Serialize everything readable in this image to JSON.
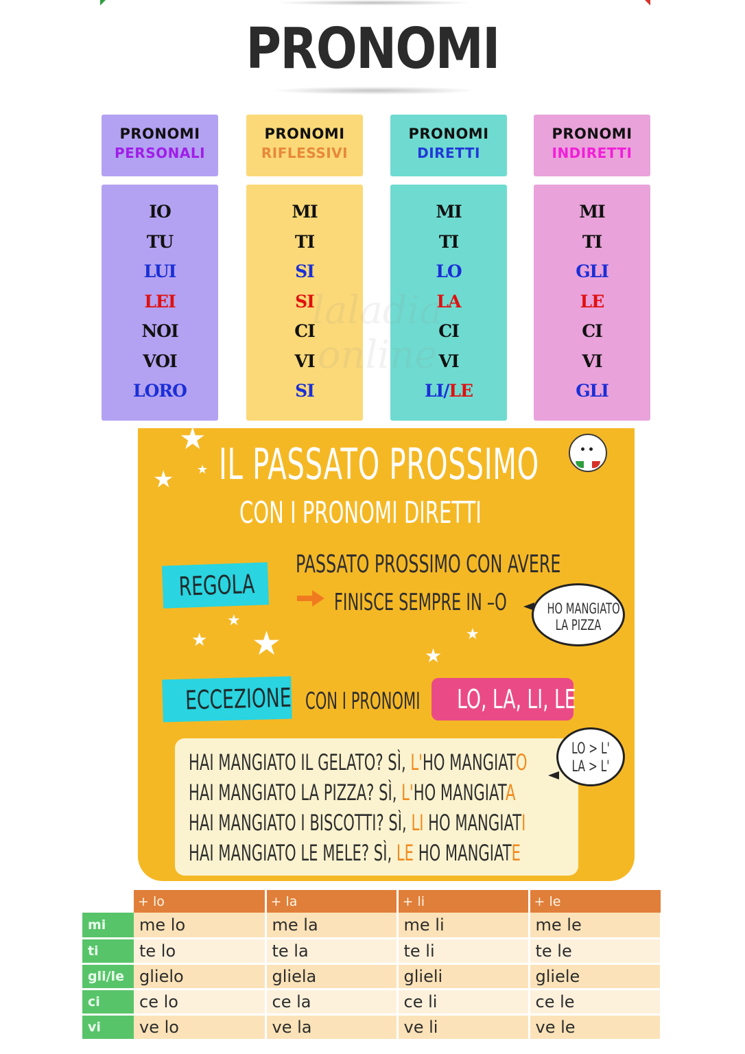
{
  "title": "PRONOMI",
  "colors": {
    "personali": "#b3a2f2",
    "riflessivi": "#fbd978",
    "diretti": "#6fdbd0",
    "indiretti": "#e9a2da",
    "blue": "#1a2fd6",
    "red": "#e01010",
    "poster": "#f5b825",
    "accent_cyan": "#2ad4e0",
    "accent_pink": "#ea4b86",
    "table_header": "#e07f3a",
    "table_rowlabel": "#58c46a"
  },
  "columns": [
    {
      "head1": "PRONOMI",
      "head2": "PERSONALI",
      "head2_color": "#a01ee8",
      "items": [
        {
          "t": "IO",
          "c": "black"
        },
        {
          "t": "TU",
          "c": "black"
        },
        {
          "t": "LUI",
          "c": "blue"
        },
        {
          "t": "LEI",
          "c": "red"
        },
        {
          "t": "NOI",
          "c": "black"
        },
        {
          "t": "VOI",
          "c": "black"
        },
        {
          "t": "LORO",
          "c": "blue"
        }
      ]
    },
    {
      "head1": "PRONOMI",
      "head2": "RIFLESSIVI",
      "head2_color": "#e7893a",
      "items": [
        {
          "t": "MI",
          "c": "black"
        },
        {
          "t": "TI",
          "c": "black"
        },
        {
          "t": "SI",
          "c": "blue"
        },
        {
          "t": "SI",
          "c": "red"
        },
        {
          "t": "CI",
          "c": "black"
        },
        {
          "t": "VI",
          "c": "black"
        },
        {
          "t": "SI",
          "c": "blue"
        }
      ]
    },
    {
      "head1": "PRONOMI",
      "head2": "DIRETTI",
      "head2_color": "#2238d8",
      "items": [
        {
          "t": "MI",
          "c": "black"
        },
        {
          "t": "TI",
          "c": "black"
        },
        {
          "t": "LO",
          "c": "blue"
        },
        {
          "t": "LA",
          "c": "red"
        },
        {
          "t": "CI",
          "c": "black"
        },
        {
          "t": "VI",
          "c": "black"
        }
      ],
      "last_a": "LI/",
      "last_b": "LE"
    },
    {
      "head1": "PRONOMI",
      "head2": "INDIRETTI",
      "head2_color": "#f21ed9",
      "items": [
        {
          "t": "MI",
          "c": "black"
        },
        {
          "t": "TI",
          "c": "black"
        },
        {
          "t": "GLI",
          "c": "blue"
        },
        {
          "t": "LE",
          "c": "red"
        },
        {
          "t": "CI",
          "c": "black"
        },
        {
          "t": "VI",
          "c": "black"
        },
        {
          "t": "GLI",
          "c": "blue"
        }
      ]
    }
  ],
  "watermark": "laladia online",
  "poster": {
    "title": "IL PASSATO PROSSIMO",
    "subtitle": "CON I PRONOMI DIRETTI",
    "regola_label": "REGOLA",
    "rule_line1": "PASSATO PROSSIMO CON AVERE",
    "rule_line2": "FINISCE SEMPRE IN –O",
    "bubble1_line1": "HO MANGIATO",
    "bubble1_line2": "LA PIZZA",
    "eccezione_label": "ECCEZIONE",
    "eccezione_text": "CON I PRONOMI",
    "eccezione_pronouns": "LO, LA, LI, LE",
    "bubble2_line1": "LO > L'",
    "bubble2_line2": "LA > L'",
    "examples": [
      {
        "q": "HAI MANGIATO IL GELATO? SÌ, ",
        "p": "L'",
        "m": "HO MANGIAT",
        "e": "O"
      },
      {
        "q": "HAI MANGIATO LA PIZZA?  SÌ, ",
        "p": "L'",
        "m": "HO MANGIAT",
        "e": "A"
      },
      {
        "q": "HAI MANGIATO I BISCOTTI? SÌ, ",
        "p": "LI",
        "m": " HO MANGIAT",
        "e": "I"
      },
      {
        "q": "HAI MANGIATO LE MELE?  SÌ, ",
        "p": "LE",
        "m": " HO MANGIAT",
        "e": "E"
      }
    ]
  },
  "combo_table": {
    "headers": [
      "+ lo",
      "+ la",
      "+ li",
      "+ le"
    ],
    "rows": [
      {
        "label": "mi",
        "cells": [
          "me lo",
          "me la",
          "me li",
          "me le"
        ]
      },
      {
        "label": "ti",
        "cells": [
          "te lo",
          "te la",
          "te li",
          "te le"
        ]
      },
      {
        "label": "gli/le",
        "cells": [
          "glielo",
          "gliela",
          "glieli",
          "gliele"
        ]
      },
      {
        "label": "ci",
        "cells": [
          "ce lo",
          "ce la",
          "ce li",
          "ce le"
        ]
      },
      {
        "label": "vi",
        "cells": [
          "ve lo",
          "ve la",
          "ve li",
          "ve le"
        ]
      }
    ]
  }
}
